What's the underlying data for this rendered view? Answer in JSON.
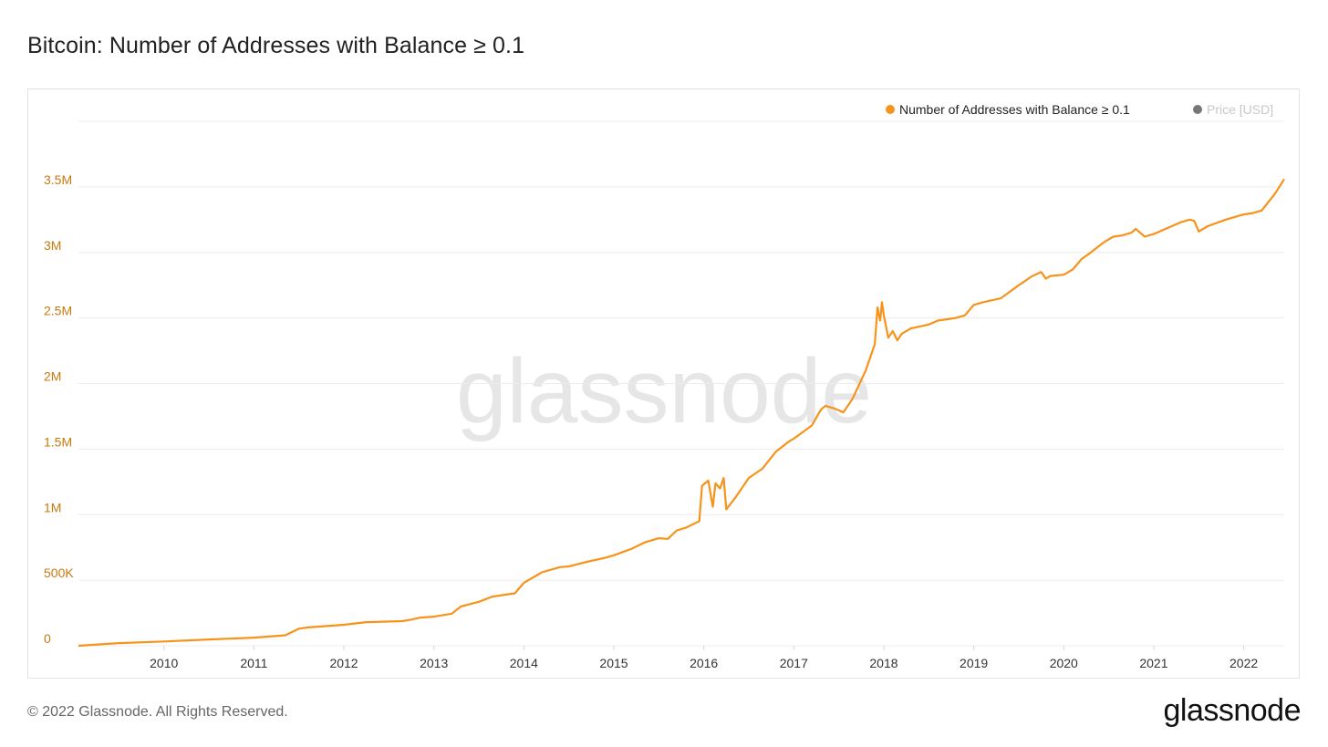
{
  "page": {
    "title": "Bitcoin: Number of Addresses with Balance ≥ 0.1",
    "copyright": "© 2022 Glassnode. All Rights Reserved.",
    "logo_text": "glassnode",
    "watermark": "glassnode"
  },
  "colors": {
    "series": "#f7931a",
    "axis_label": "#c87910",
    "grid": "#ececec",
    "price_legend": "#777777",
    "price_legend_text": "#c8c8c8",
    "watermark": "#e6e6e6"
  },
  "chart_data": {
    "type": "line",
    "title": "Bitcoin: Number of Addresses with Balance ≥ 0.1",
    "xlim": [
      2009.05,
      2022.45
    ],
    "ylim": [
      0,
      4000000
    ],
    "ytick_values": [
      0,
      500000,
      1000000,
      1500000,
      2000000,
      2500000,
      3000000,
      3500000
    ],
    "ytick_labels": [
      "0",
      "500K",
      "1M",
      "1.5M",
      "2M",
      "2.5M",
      "3M",
      "3.5M"
    ],
    "xtick_values": [
      2010,
      2011,
      2012,
      2013,
      2014,
      2015,
      2016,
      2017,
      2018,
      2019,
      2020,
      2021,
      2022
    ],
    "xtick_labels": [
      "2010",
      "2011",
      "2012",
      "2013",
      "2014",
      "2015",
      "2016",
      "2017",
      "2018",
      "2019",
      "2020",
      "2021",
      "2022"
    ],
    "grid": true,
    "legend_position": "top-right",
    "legend": [
      {
        "label": "Number of Addresses with Balance ≥ 0.1",
        "color": "#f7931a",
        "active": true
      },
      {
        "label": "Price [USD]",
        "color": "#777777",
        "active": false
      }
    ],
    "series": [
      {
        "name": "Number of Addresses with Balance ≥ 0.1",
        "x": [
          2009.05,
          2009.5,
          2010.0,
          2010.5,
          2011.0,
          2011.35,
          2011.5,
          2011.6,
          2012.0,
          2012.25,
          2012.65,
          2012.75,
          2012.85,
          2013.0,
          2013.2,
          2013.3,
          2013.5,
          2013.65,
          2013.9,
          2014.0,
          2014.2,
          2014.4,
          2014.5,
          2014.7,
          2014.9,
          2015.0,
          2015.2,
          2015.35,
          2015.5,
          2015.6,
          2015.7,
          2015.8,
          2015.95,
          2015.98,
          2016.05,
          2016.1,
          2016.13,
          2016.18,
          2016.22,
          2016.25,
          2016.35,
          2016.5,
          2016.65,
          2016.8,
          2016.95,
          2017.0,
          2017.2,
          2017.3,
          2017.35,
          2017.45,
          2017.55,
          2017.6,
          2017.65,
          2017.8,
          2017.9,
          2017.93,
          2017.96,
          2017.98,
          2018.0,
          2018.05,
          2018.1,
          2018.15,
          2018.2,
          2018.3,
          2018.5,
          2018.6,
          2018.8,
          2018.9,
          2019.0,
          2019.1,
          2019.3,
          2019.4,
          2019.5,
          2019.65,
          2019.75,
          2019.8,
          2019.85,
          2020.0,
          2020.1,
          2020.2,
          2020.3,
          2020.45,
          2020.55,
          2020.65,
          2020.75,
          2020.8,
          2020.9,
          2021.0,
          2021.2,
          2021.3,
          2021.4,
          2021.45,
          2021.5,
          2021.6,
          2021.8,
          2021.9,
          2022.0,
          2022.1,
          2022.2,
          2022.35,
          2022.45
        ],
        "values": [
          0,
          20000,
          33000,
          48000,
          62000,
          80000,
          130000,
          140000,
          160000,
          180000,
          188000,
          200000,
          215000,
          222000,
          245000,
          300000,
          335000,
          375000,
          400000,
          480000,
          560000,
          600000,
          605000,
          640000,
          670000,
          690000,
          740000,
          790000,
          820000,
          815000,
          880000,
          900000,
          950000,
          1220000,
          1260000,
          1060000,
          1240000,
          1200000,
          1280000,
          1040000,
          1130000,
          1280000,
          1350000,
          1480000,
          1560000,
          1580000,
          1680000,
          1800000,
          1830000,
          1810000,
          1780000,
          1830000,
          1880000,
          2100000,
          2300000,
          2580000,
          2480000,
          2620000,
          2520000,
          2350000,
          2400000,
          2330000,
          2380000,
          2420000,
          2450000,
          2480000,
          2500000,
          2520000,
          2600000,
          2620000,
          2650000,
          2700000,
          2750000,
          2820000,
          2850000,
          2800000,
          2820000,
          2830000,
          2870000,
          2950000,
          3000000,
          3080000,
          3120000,
          3130000,
          3150000,
          3180000,
          3120000,
          3140000,
          3200000,
          3230000,
          3250000,
          3240000,
          3160000,
          3200000,
          3250000,
          3270000,
          3290000,
          3300000,
          3320000,
          3450000,
          3560000
        ]
      }
    ]
  }
}
